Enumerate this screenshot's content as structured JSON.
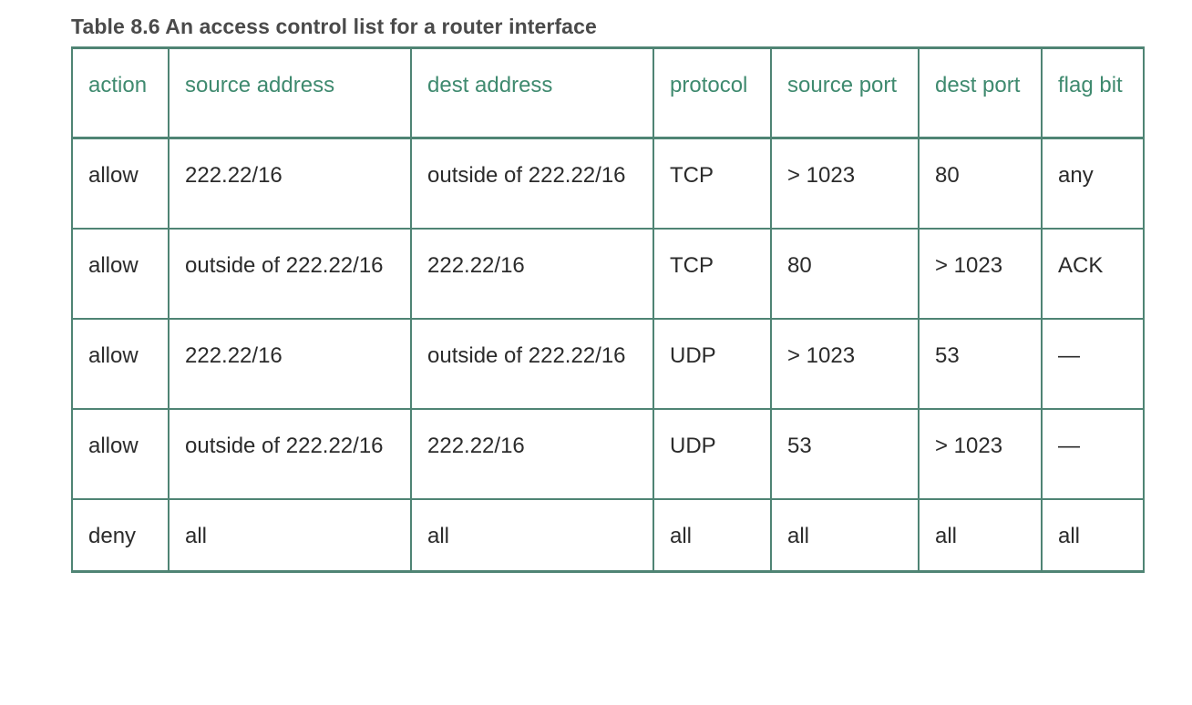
{
  "caption": "Table 8.6 An access control list for a router interface",
  "columns": [
    "action",
    "source address",
    "dest address",
    "protocol",
    "source port",
    "dest port",
    "flag bit"
  ],
  "rows": [
    [
      "allow",
      "222.22/16",
      "outside of 222.22/16",
      "TCP",
      "> 1023",
      "80",
      "any"
    ],
    [
      "allow",
      "outside of 222.22/16",
      "222.22/16",
      "TCP",
      "80",
      "> 1023",
      "ACK"
    ],
    [
      "allow",
      "222.22/16",
      "outside of 222.22/16",
      "UDP",
      "> 1023",
      "53",
      "—"
    ],
    [
      "allow",
      "outside of 222.22/16",
      "222.22/16",
      "UDP",
      "53",
      "> 1023",
      "—"
    ],
    [
      "deny",
      "all",
      "all",
      "all",
      "all",
      "all",
      "all"
    ]
  ],
  "colors": {
    "rule": "#4f8474",
    "header_text": "#3f8a6f",
    "caption_text": "#4a4a4a",
    "body_text": "#2b2b2b"
  }
}
